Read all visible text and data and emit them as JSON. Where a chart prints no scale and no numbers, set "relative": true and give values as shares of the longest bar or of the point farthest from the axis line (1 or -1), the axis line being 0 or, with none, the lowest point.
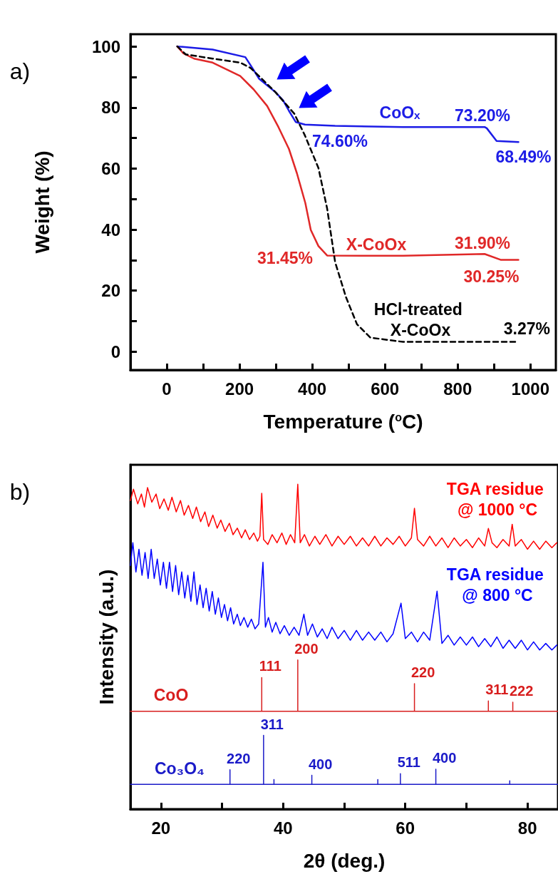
{
  "chart_data": [
    {
      "type": "line",
      "xlabel": "Temperature ($^{o}$C)",
      "ylabel": "Weight (%)",
      "marker": "none",
      "xlim": [
        -100,
        1070
      ],
      "ylim": [
        -6,
        104
      ],
      "xticks": [
        0,
        {
          "value": 100,
          "label": null
        },
        200,
        {
          "value": 300,
          "label": null
        },
        400,
        {
          "value": 500,
          "label": null
        },
        600,
        {
          "value": 700,
          "label": null
        },
        800,
        {
          "value": 900,
          "label": null
        },
        1000
      ],
      "yticks": [
        0,
        {
          "value": 10,
          "label": null
        },
        20,
        {
          "value": 30,
          "label": null
        },
        40,
        {
          "value": 50,
          "label": null
        },
        60,
        {
          "value": 70,
          "label": null
        },
        80,
        {
          "value": 90,
          "label": null
        },
        100
      ],
      "series": [
        {
          "name": "CoOₓ",
          "color": "#1c1ce6",
          "line_style": "solid",
          "x": [
            29,
            126,
            216,
            235,
            254,
            299,
            320,
            336,
            355,
            380,
            463,
            650,
            874,
            880,
            907,
            967
          ],
          "values": [
            100,
            99,
            96.5,
            93,
            89.4,
            85,
            82.3,
            78.9,
            75.2,
            74.4,
            74,
            73.6,
            73.6,
            73.2,
            69,
            68.7
          ]
        },
        {
          "name": "X-CoOx",
          "color": "#e02828",
          "line_style": "solid",
          "x": [
            29,
            45,
            75,
            126,
            202,
            239,
            276,
            307,
            336,
            358,
            381,
            396,
            417,
            441,
            650,
            874,
            918,
            967
          ],
          "values": [
            100,
            97.8,
            96,
            94.7,
            90.3,
            85.9,
            80.5,
            73.6,
            66.4,
            58.4,
            48.7,
            39.9,
            34.6,
            31.5,
            31.4,
            32,
            30.1,
            30.1
          ]
        },
        {
          "name": "HCl-treated X-CoOx",
          "color": "#000000",
          "line_style": "dashed",
          "x": [
            29,
            52,
            126,
            202,
            231,
            269,
            299,
            351,
            380,
            417,
            441,
            463,
            493,
            523,
            560,
            650,
            959
          ],
          "values": [
            100,
            97.4,
            96,
            94.7,
            92.9,
            88.5,
            85,
            77.9,
            70.8,
            60.2,
            46.9,
            29.3,
            17.8,
            9,
            4.6,
            3.2,
            3.2
          ]
        }
      ],
      "annotations": [
        "a)",
        {
          "text": "74.60%",
          "x": 380,
          "y": 74.6
        },
        {
          "text": "73.20%",
          "x": 880,
          "y": 73.2
        },
        {
          "text": "68.49%",
          "x": 967,
          "y": 68.49
        },
        {
          "text": "31.45%",
          "x": 441,
          "y": 31.45
        },
        {
          "text": "31.90%",
          "x": 874,
          "y": 31.9
        },
        {
          "text": "30.25%",
          "x": 967,
          "y": 30.25
        },
        {
          "text": "3.27%",
          "x": 959,
          "y": 3.27
        }
      ]
    },
    {
      "type": "line",
      "xlabel": "2θ (deg.)",
      "ylabel": "Intensity (a.u.)",
      "marker": "none",
      "relative": true,
      "xlim": [
        15,
        85
      ],
      "xticks": [
        20,
        {
          "value": 30,
          "label": null
        },
        40,
        {
          "value": 50,
          "label": null
        },
        60,
        {
          "value": 70,
          "label": null
        },
        80
      ],
      "series": [
        {
          "name": "TGA residue @ 1000 °C",
          "color": "#ff0000",
          "x": [
            15.0,
            15.5,
            16.2,
            16.8,
            17.3,
            17.8,
            18.5,
            19.2,
            19.8,
            20.5,
            21.2,
            21.8,
            22.5,
            23.2,
            23.8,
            24.5,
            25.2,
            25.8,
            26.5,
            27.2,
            27.8,
            28.5,
            29.2,
            29.8,
            30.5,
            31.2,
            31.8,
            32.5,
            33.2,
            33.8,
            34.5,
            35.2,
            35.8,
            36.2,
            36.5,
            36.8,
            37.5,
            38.2,
            39.0,
            39.8,
            40.5,
            41.2,
            41.9,
            42.4,
            42.8,
            43.5,
            44.3,
            45.2,
            46.0,
            47.0,
            48.0,
            49.0,
            50.0,
            51.0,
            52.0,
            53.0,
            54.0,
            55.0,
            56.0,
            57.0,
            58.0,
            59.0,
            60.0,
            61.0,
            61.5,
            62.0,
            63.0,
            64.0,
            65.0,
            66.0,
            67.0,
            68.0,
            69.0,
            70.0,
            71.0,
            72.0,
            73.0,
            73.6,
            74.2,
            75.0,
            76.0,
            77.0,
            77.5,
            78.0,
            79.0,
            80.0,
            81.0,
            82.0,
            83.0,
            84.0,
            84.8
          ],
          "values": [
            0.95,
            0.985,
            0.94,
            0.97,
            0.93,
            0.99,
            0.945,
            0.97,
            0.925,
            0.955,
            0.92,
            0.96,
            0.915,
            0.95,
            0.905,
            0.935,
            0.895,
            0.93,
            0.885,
            0.915,
            0.87,
            0.905,
            0.865,
            0.89,
            0.855,
            0.88,
            0.845,
            0.865,
            0.835,
            0.86,
            0.83,
            0.85,
            0.825,
            0.84,
            0.972,
            0.83,
            0.815,
            0.845,
            0.82,
            0.85,
            0.815,
            0.845,
            0.82,
            1.0,
            0.82,
            0.845,
            0.81,
            0.84,
            0.815,
            0.845,
            0.81,
            0.84,
            0.815,
            0.84,
            0.81,
            0.835,
            0.81,
            0.84,
            0.81,
            0.835,
            0.815,
            0.84,
            0.81,
            0.835,
            0.926,
            0.83,
            0.81,
            0.84,
            0.81,
            0.835,
            0.805,
            0.835,
            0.81,
            0.83,
            0.805,
            0.835,
            0.81,
            0.864,
            0.82,
            0.805,
            0.83,
            0.81,
            0.877,
            0.81,
            0.83,
            0.8,
            0.825,
            0.8,
            0.825,
            0.805,
            0.82
          ]
        },
        {
          "name": "TGA residue @ 800 °C",
          "color": "#0000ff",
          "x": [
            15.0,
            15.4,
            15.9,
            16.4,
            16.9,
            17.4,
            17.9,
            18.4,
            18.9,
            19.4,
            19.9,
            20.4,
            20.9,
            21.4,
            21.9,
            22.4,
            22.9,
            23.4,
            23.9,
            24.4,
            24.9,
            25.4,
            25.9,
            26.4,
            26.9,
            27.4,
            27.9,
            28.4,
            28.9,
            29.4,
            29.9,
            30.4,
            30.9,
            31.4,
            31.9,
            32.5,
            33.0,
            33.6,
            34.2,
            34.8,
            35.4,
            36.0,
            36.7,
            37.1,
            37.6,
            38.2,
            38.8,
            39.5,
            40.2,
            41.0,
            41.8,
            42.6,
            43.4,
            44.0,
            44.8,
            45.6,
            46.4,
            47.2,
            48.0,
            49.0,
            50.0,
            51.0,
            52.0,
            53.0,
            54.0,
            55.0,
            56.0,
            57.0,
            58.0,
            59.3,
            60.0,
            61.0,
            62.0,
            63.0,
            64.0,
            65.2,
            66.0,
            67.0,
            68.0,
            69.0,
            70.0,
            71.0,
            72.0,
            73.0,
            74.0,
            75.0,
            76.0,
            77.0,
            78.0,
            79.0,
            80.0,
            81.0,
            82.0,
            83.0,
            84.0,
            84.8
          ],
          "values": [
            0.75,
            0.82,
            0.73,
            0.8,
            0.72,
            0.79,
            0.71,
            0.8,
            0.71,
            0.77,
            0.69,
            0.76,
            0.68,
            0.76,
            0.67,
            0.75,
            0.66,
            0.73,
            0.65,
            0.72,
            0.64,
            0.73,
            0.63,
            0.69,
            0.62,
            0.68,
            0.61,
            0.67,
            0.6,
            0.65,
            0.59,
            0.63,
            0.58,
            0.62,
            0.57,
            0.6,
            0.565,
            0.59,
            0.56,
            0.585,
            0.555,
            0.57,
            0.76,
            0.56,
            0.59,
            0.545,
            0.575,
            0.54,
            0.565,
            0.535,
            0.56,
            0.535,
            0.6,
            0.535,
            0.57,
            0.53,
            0.555,
            0.525,
            0.56,
            0.525,
            0.55,
            0.52,
            0.55,
            0.52,
            0.545,
            0.52,
            0.545,
            0.515,
            0.54,
            0.634,
            0.525,
            0.545,
            0.515,
            0.545,
            0.52,
            0.671,
            0.51,
            0.535,
            0.505,
            0.53,
            0.505,
            0.53,
            0.5,
            0.525,
            0.5,
            0.53,
            0.495,
            0.52,
            0.495,
            0.52,
            0.49,
            0.515,
            0.49,
            0.51,
            0.49,
            0.505
          ]
        },
        {
          "name": "CoO",
          "color": "#d81e1e",
          "x": [
            15,
            36.5,
            36.5,
            36.5,
            42.4,
            42.4,
            42.4,
            61.5,
            61.5,
            61.5,
            73.6,
            73.6,
            73.6,
            77.6,
            77.6,
            77.6,
            85
          ],
          "values": [
            0.301,
            0.301,
            0.405,
            0.301,
            0.301,
            0.459,
            0.301,
            0.301,
            0.386,
            0.301,
            0.301,
            0.333,
            0.301,
            0.301,
            0.329,
            0.301,
            0.301
          ]
        },
        {
          "name": "Co₃O₄",
          "color": "#1a1ac8",
          "x": [
            15,
            31.3,
            31.3,
            31.3,
            36.8,
            36.8,
            36.8,
            38.5,
            38.5,
            38.5,
            44.7,
            44.7,
            44.7,
            55.5,
            55.5,
            55.5,
            59.2,
            59.2,
            59.2,
            65.0,
            65.0,
            65.0,
            77.1,
            77.1,
            77.1,
            85
          ],
          "values": [
            0.076,
            0.076,
            0.121,
            0.076,
            0.076,
            0.227,
            0.076,
            0.076,
            0.091,
            0.076,
            0.076,
            0.104,
            0.076,
            0.076,
            0.091,
            0.076,
            0.076,
            0.109,
            0.076,
            0.076,
            0.123,
            0.076,
            0.076,
            0.087,
            0.076,
            0.076
          ]
        }
      ],
      "annotations": [
        "b)",
        {
          "text": "111",
          "x": 36.5,
          "y": 0.405
        },
        {
          "text": "200",
          "x": 42.4,
          "y": 0.459
        },
        {
          "text": "220",
          "x": 61.5,
          "y": 0.386
        },
        {
          "text": "311",
          "x": 73.6,
          "y": 0.333
        },
        {
          "text": "222",
          "x": 77.6,
          "y": 0.329
        },
        {
          "text": "220",
          "x": 31.3,
          "y": 0.121
        },
        {
          "text": "311",
          "x": 36.8,
          "y": 0.227
        },
        {
          "text": "400",
          "x": 44.7,
          "y": 0.104
        },
        {
          "text": "511",
          "x": 59.2,
          "y": 0.109
        },
        {
          "text": "400",
          "x": 65.0,
          "y": 0.123
        }
      ]
    }
  ]
}
